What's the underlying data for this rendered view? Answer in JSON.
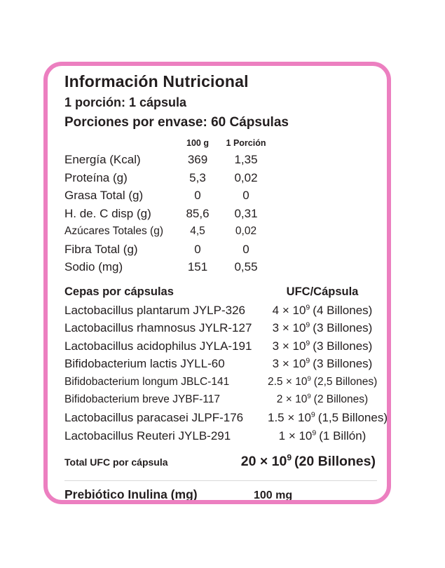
{
  "colors": {
    "border_pink": "#ec7fc0",
    "text": "#221d1e",
    "divider": "#d8d8d8"
  },
  "label": {
    "title": "Información Nutricional",
    "serving": "1 porción: 1 cápsula",
    "servings_per_pack": "Porciones por envase: 60 Cápsulas",
    "nutrition": {
      "columns": [
        "100 g",
        "1 Porción"
      ],
      "rows": [
        {
          "name": "Energía (Kcal)",
          "c1": "369",
          "c2": "1,35"
        },
        {
          "name": "Proteína (g)",
          "c1": "5,3",
          "c2": "0,02"
        },
        {
          "name": "Grasa Total (g)",
          "c1": "0",
          "c2": "0"
        },
        {
          "name": "H. de. C disp (g)",
          "c1": "85,6",
          "c2": "0,31"
        },
        {
          "name": "Azúcares Totales (g)",
          "c1": "4,5",
          "c2": "0,02"
        },
        {
          "name": "Fibra Total (g)",
          "c1": "0",
          "c2": "0"
        },
        {
          "name": "Sodio (mg)",
          "c1": "151",
          "c2": "0,55"
        }
      ]
    },
    "strains": {
      "header_left": "Cepas por cápsulas",
      "header_right": "UFC/Cápsula",
      "rows": [
        {
          "name": "Lactobacillus plantarum JYLP-326",
          "base": "4 × 10",
          "exp": "9",
          "note": "(4 Billones)"
        },
        {
          "name": "Lactobacillus rhamnosus JYLR-127",
          "base": "3 × 10",
          "exp": "9",
          "note": "(3 Billones)"
        },
        {
          "name": "Lactobacillus acidophilus JYLA-191",
          "base": "3 × 10",
          "exp": "9",
          "note": "(3 Billones)"
        },
        {
          "name": "Bifidobacterium lactis JYLL-60",
          "base": "3 × 10",
          "exp": "9",
          "note": "(3 Billones)"
        },
        {
          "name": "Bifidobacterium longum JBLC-141",
          "base": "2.5 × 10",
          "exp": "9",
          "note": "(2,5 Billones)"
        },
        {
          "name": "Bifidobacterium breve JYBF-117",
          "base": "2 × 10",
          "exp": "9",
          "note": "(2 Billones)"
        },
        {
          "name": "Lactobacillus paracasei JLPF-176",
          "base": "1.5 × 10",
          "exp": "9",
          "note": "(1,5 Billones)"
        },
        {
          "name": "Lactobacillus Reuteri JYLB-291",
          "base": "1 × 10",
          "exp": "9",
          "note": "(1 Billón)"
        }
      ]
    },
    "total": {
      "label": "Total UFC por cápsula",
      "base": "20 × 10",
      "exp": "9",
      "note": "(20 Billones)"
    },
    "prebiotic": {
      "label": "Prebiótico Inulina (mg)",
      "value": "100 mg"
    }
  }
}
